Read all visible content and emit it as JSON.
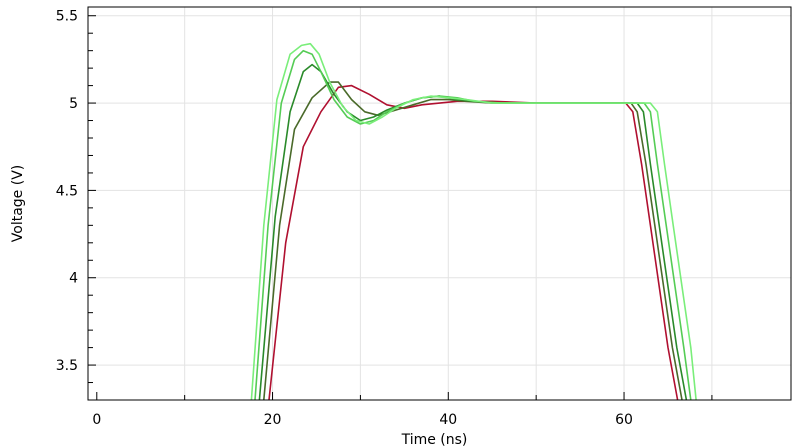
{
  "chart_data": {
    "type": "line",
    "title": "",
    "xlabel": "Time (ns)",
    "ylabel": "Voltage (V)",
    "xlim": [
      -1,
      79
    ],
    "ylim": [
      3.3,
      5.55
    ],
    "xticks": [
      0,
      20,
      40,
      60
    ],
    "xtick_labels": [
      "0",
      "20",
      "40",
      "60"
    ],
    "xminor_step": 10,
    "yticks": [
      3.5,
      4,
      4.5,
      5,
      5.5
    ],
    "ytick_labels": [
      "3.5",
      "4",
      "4.5",
      "5",
      "5.5"
    ],
    "yminor_step": 0.1,
    "grid": true,
    "legend": "none",
    "series": [
      {
        "color": "#b01030",
        "x": [
          19.6,
          21.5,
          23.5,
          25.5,
          27.5,
          29.0,
          31.0,
          33.0,
          35.0,
          37.0,
          39.0,
          41.0,
          45.0,
          50.0,
          55.0,
          59.0,
          60.2,
          61.0,
          62.0,
          63.0,
          64.0,
          65.0,
          66.1
        ],
        "y": [
          3.3,
          4.2,
          4.75,
          4.95,
          5.09,
          5.1,
          5.05,
          4.99,
          4.97,
          4.99,
          5.0,
          5.01,
          5.01,
          5.0,
          5.0,
          5.0,
          5.0,
          4.95,
          4.65,
          4.3,
          3.95,
          3.6,
          3.3
        ]
      },
      {
        "color": "#4a6a2a",
        "x": [
          19.0,
          20.8,
          22.5,
          24.5,
          26.5,
          27.5,
          29.0,
          30.5,
          32.0,
          34.0,
          36.0,
          38.0,
          40.0,
          42.0,
          45.0,
          50.0,
          55.0,
          60.0,
          60.8,
          61.5,
          62.5,
          63.5,
          64.5,
          65.5,
          66.6
        ],
        "y": [
          3.3,
          4.3,
          4.85,
          5.03,
          5.12,
          5.12,
          5.02,
          4.95,
          4.93,
          4.96,
          4.99,
          5.02,
          5.02,
          5.01,
          5.0,
          5.0,
          5.0,
          5.0,
          5.0,
          4.95,
          4.65,
          4.3,
          3.95,
          3.6,
          3.3
        ]
      },
      {
        "color": "#2a8a2a",
        "x": [
          18.5,
          20.3,
          22.0,
          23.5,
          24.5,
          25.5,
          27.0,
          28.5,
          30.0,
          31.5,
          33.0,
          35.0,
          37.0,
          39.0,
          41.0,
          43.0,
          46.0,
          50.0,
          55.0,
          60.0,
          61.5,
          62.2,
          63.0,
          64.0,
          65.0,
          66.0,
          67.1
        ],
        "y": [
          3.3,
          4.35,
          4.95,
          5.18,
          5.22,
          5.18,
          5.05,
          4.95,
          4.9,
          4.92,
          4.96,
          5.0,
          5.03,
          5.04,
          5.02,
          5.01,
          5.0,
          5.0,
          5.0,
          5.0,
          5.0,
          4.95,
          4.65,
          4.3,
          3.95,
          3.6,
          3.3
        ]
      },
      {
        "color": "#55cc55",
        "x": [
          18.0,
          19.5,
          21.0,
          22.5,
          23.5,
          24.5,
          25.5,
          27.0,
          28.5,
          30.0,
          31.5,
          33.0,
          35.0,
          37.0,
          39.0,
          41.0,
          43.0,
          46.0,
          50.0,
          55.0,
          60.0,
          62.3,
          63.0,
          63.8,
          64.8,
          65.8,
          66.8,
          67.6
        ],
        "y": [
          3.3,
          4.3,
          5.0,
          5.25,
          5.3,
          5.28,
          5.18,
          5.02,
          4.92,
          4.88,
          4.9,
          4.95,
          5.0,
          5.03,
          5.04,
          5.03,
          5.01,
          5.0,
          5.0,
          5.0,
          5.0,
          5.0,
          4.95,
          4.65,
          4.3,
          3.95,
          3.6,
          3.3
        ]
      },
      {
        "color": "#7aee7a",
        "x": [
          17.6,
          19.0,
          20.5,
          22.0,
          23.3,
          24.3,
          25.3,
          26.5,
          28.0,
          29.5,
          31.0,
          32.5,
          34.0,
          36.0,
          38.0,
          40.0,
          42.0,
          45.0,
          50.0,
          55.0,
          60.0,
          63.0,
          63.8,
          64.6,
          65.6,
          66.6,
          67.6,
          68.2
        ],
        "y": [
          3.3,
          4.3,
          5.02,
          5.28,
          5.33,
          5.34,
          5.28,
          5.12,
          4.98,
          4.9,
          4.88,
          4.92,
          4.97,
          5.02,
          5.04,
          5.03,
          5.02,
          5.0,
          5.0,
          5.0,
          5.0,
          5.0,
          4.95,
          4.65,
          4.3,
          3.95,
          3.6,
          3.3
        ]
      }
    ]
  }
}
